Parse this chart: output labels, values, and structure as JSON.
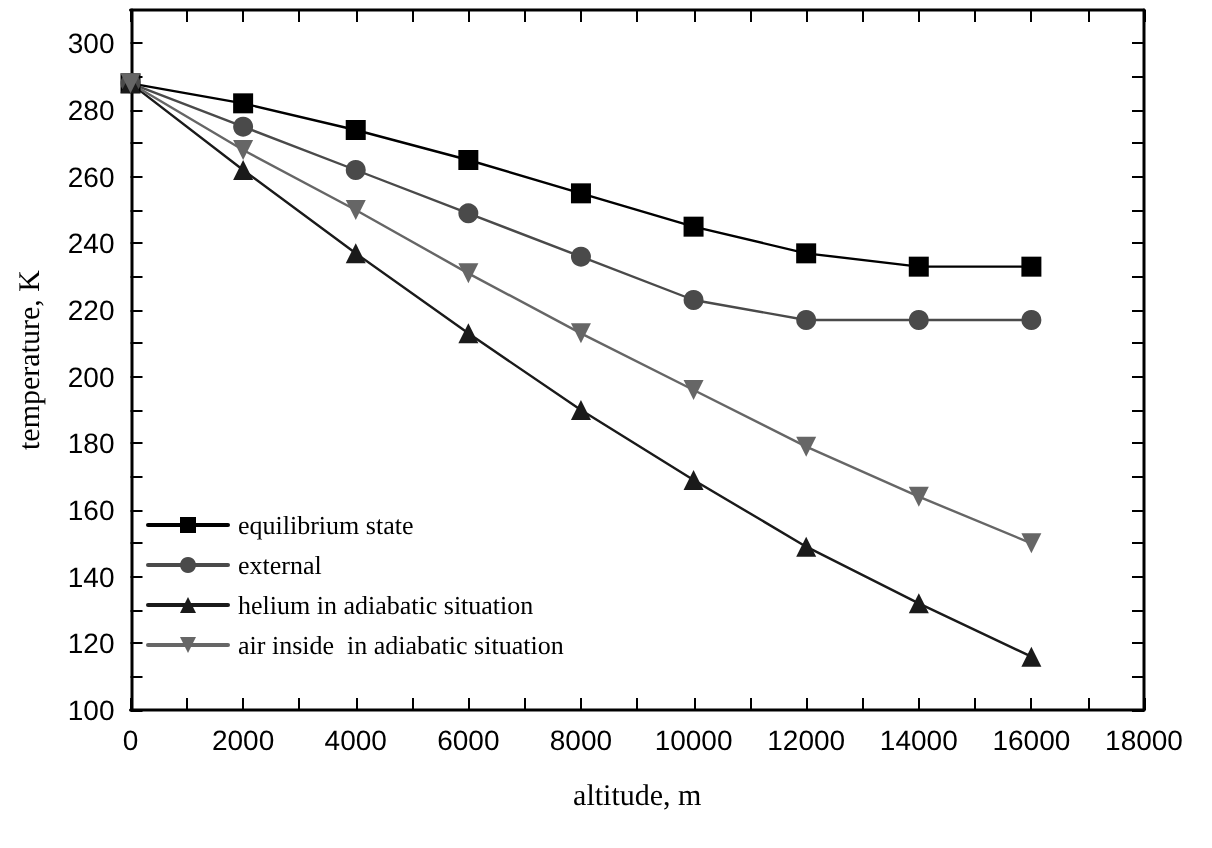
{
  "chart_data": {
    "type": "line",
    "xlabel": "altitude, m",
    "ylabel": "temperature, K",
    "x": [
      0,
      2000,
      4000,
      6000,
      8000,
      10000,
      12000,
      14000,
      16000
    ],
    "series": [
      {
        "name": "equilibrium state",
        "color": "#000000",
        "marker": "square",
        "values": [
          288,
          282,
          274,
          265,
          255,
          245,
          237,
          233,
          233
        ]
      },
      {
        "name": "external",
        "color": "#4a4a4a",
        "marker": "circle",
        "values": [
          288,
          275,
          262,
          249,
          236,
          223,
          217,
          217,
          217
        ]
      },
      {
        "name": "helium in adiabatic situation",
        "color": "#1a1a1a",
        "marker": "triangle",
        "values": [
          288,
          262,
          237,
          213,
          190,
          169,
          149,
          132,
          116
        ]
      },
      {
        "name": "air inside  in adiabatic situation",
        "color": "#666666",
        "marker": "triangle-down",
        "values": [
          288,
          268,
          250,
          231,
          213,
          196,
          179,
          164,
          150
        ]
      }
    ],
    "xlim": [
      0,
      18000
    ],
    "xticks": [
      0,
      2000,
      4000,
      6000,
      8000,
      10000,
      12000,
      14000,
      16000,
      18000
    ],
    "ylim": [
      100,
      310
    ],
    "yticks": [
      100,
      120,
      140,
      160,
      180,
      200,
      220,
      240,
      260,
      280,
      300
    ],
    "grid": false,
    "legend": "bottom left",
    "line_style": "solid"
  }
}
